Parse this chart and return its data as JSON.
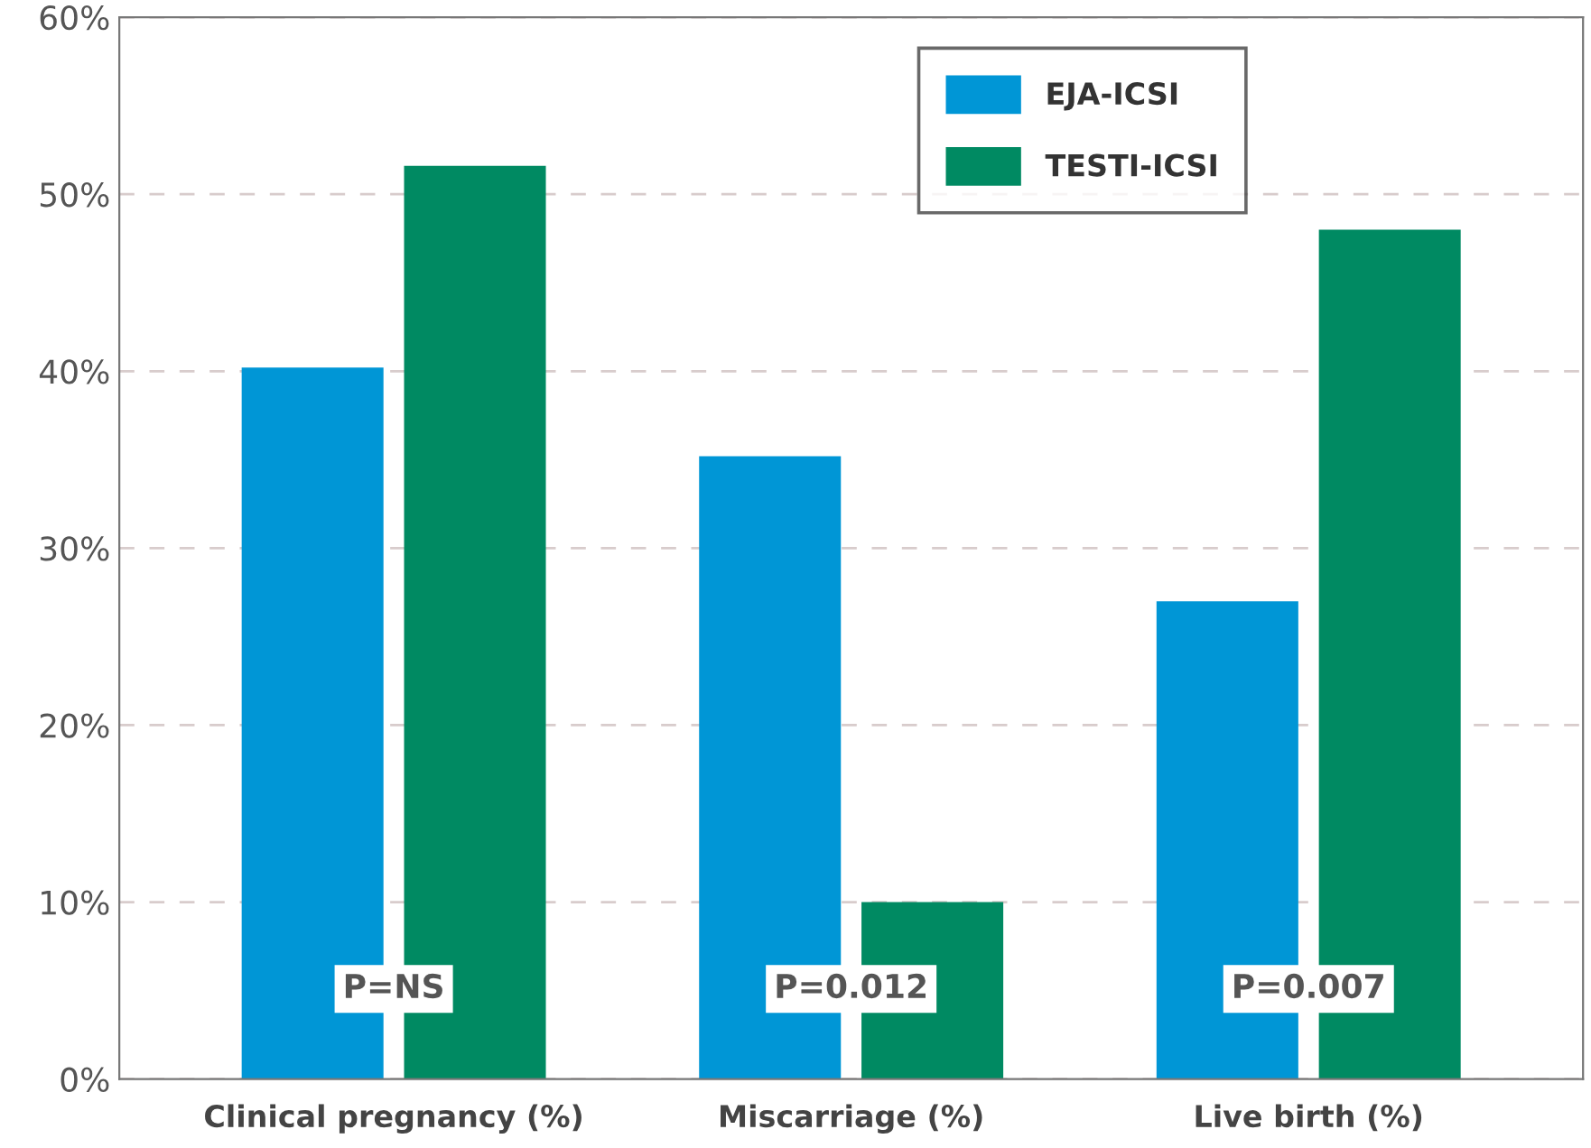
{
  "chart_data": {
    "type": "bar",
    "categories": [
      "Clinical pregnancy (%)",
      "Miscarriage (%)",
      "Live birth (%)"
    ],
    "series": [
      {
        "name": "EJA-ICSI",
        "color": "#0096d6",
        "values": [
          40.2,
          35.2,
          27
        ]
      },
      {
        "name": "TESTI-ICSI",
        "color": "#008a62",
        "values": [
          51.6,
          10,
          48
        ]
      }
    ],
    "ylim": [
      0,
      60
    ],
    "yticks": [
      {
        "value": 0,
        "label": "0%"
      },
      {
        "value": 10,
        "label": "10%"
      },
      {
        "value": 20,
        "label": "20%"
      },
      {
        "value": 30,
        "label": "30%"
      },
      {
        "value": 40,
        "label": "40%"
      },
      {
        "value": 50,
        "label": "50%"
      },
      {
        "value": 60,
        "label": "60%"
      }
    ],
    "grid": "y",
    "legend": "top right",
    "annotations": [
      "P=NS",
      "P=0.012",
      "P=0.007"
    ]
  }
}
